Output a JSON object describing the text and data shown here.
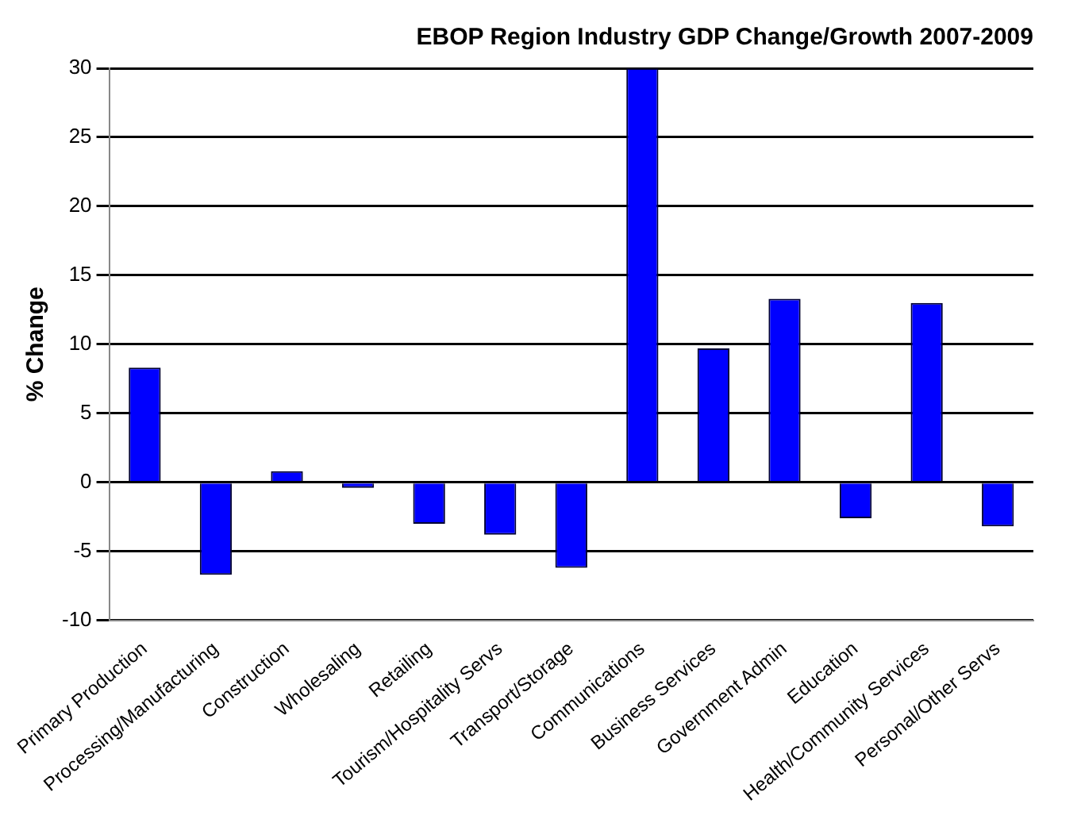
{
  "chart_data": {
    "type": "bar",
    "title": "EBOP Region Industry GDP Change/Growth 2007-2009",
    "ylabel": "% Change",
    "categories": [
      "Primary Production",
      "Processing/Manufacturing",
      "Construction",
      "Wholesaling",
      "Retailing",
      "Tourism/Hospitality Servs",
      "Transport/Storage",
      "Communications",
      "Business Services",
      "Government Admin",
      "Education",
      "Health/Community Services",
      "Personal/Other Servs"
    ],
    "values": [
      8.3,
      -6.7,
      0.8,
      -0.4,
      -3,
      -3.8,
      -6.2,
      30,
      9.7,
      13.3,
      -2.6,
      13,
      -3.2
    ],
    "color": "#0000ff",
    "ylim": [
      -10,
      30
    ],
    "yticks": [
      -10,
      -5,
      0,
      5,
      10,
      15,
      20,
      25,
      30
    ],
    "grid": "y",
    "legend": false
  }
}
